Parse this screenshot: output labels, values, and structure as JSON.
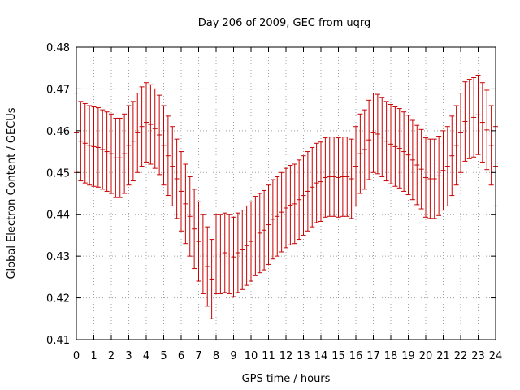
{
  "chart_data": {
    "type": "errorbar",
    "title": "Day 206 of 2009, GEC from uqrg",
    "xlabel": "GPS time / hours",
    "ylabel": "Global Electron Content / GECUs",
    "xlim": [
      0,
      24
    ],
    "ylim": [
      0.41,
      0.48
    ],
    "xticks": [
      "0",
      "1",
      "2",
      "3",
      "4",
      "5",
      "6",
      "7",
      "8",
      "9",
      "10",
      "11",
      "12",
      "13",
      "14",
      "15",
      "16",
      "17",
      "18",
      "19",
      "20",
      "21",
      "22",
      "23",
      "24"
    ],
    "yticks": [
      "0.41",
      "0.42",
      "0.43",
      "0.44",
      "0.45",
      "0.46",
      "0.47",
      "0.48"
    ],
    "grid": true,
    "color": "#c80000",
    "x": [
      0,
      0.25,
      0.5,
      0.75,
      1,
      1.25,
      1.5,
      1.75,
      2,
      2.25,
      2.5,
      2.75,
      3,
      3.25,
      3.5,
      3.75,
      4,
      4.25,
      4.5,
      4.75,
      5,
      5.25,
      5.5,
      5.75,
      6,
      6.25,
      6.5,
      6.75,
      7,
      7.25,
      7.5,
      7.75,
      8,
      8.25,
      8.5,
      8.75,
      9,
      9.25,
      9.5,
      9.75,
      10,
      10.25,
      10.5,
      10.75,
      11,
      11.25,
      11.5,
      11.75,
      12,
      12.25,
      12.5,
      12.75,
      13,
      13.25,
      13.5,
      13.75,
      14,
      14.25,
      14.5,
      14.75,
      15,
      15.25,
      15.5,
      15.75,
      16,
      16.25,
      16.5,
      16.75,
      17,
      17.25,
      17.5,
      17.75,
      18,
      18.25,
      18.5,
      18.75,
      19,
      19.25,
      19.5,
      19.75,
      20,
      20.25,
      20.5,
      20.75,
      21,
      21.25,
      21.5,
      21.75,
      22,
      22.25,
      22.5,
      22.75,
      23,
      23.25,
      23.5,
      23.75,
      24
    ],
    "y": [
      0.4595,
      0.4575,
      0.457,
      0.4565,
      0.4562,
      0.456,
      0.4555,
      0.455,
      0.4545,
      0.4535,
      0.4535,
      0.4545,
      0.4565,
      0.4575,
      0.4595,
      0.461,
      0.462,
      0.4615,
      0.4605,
      0.459,
      0.4565,
      0.454,
      0.4515,
      0.4485,
      0.4455,
      0.4425,
      0.4395,
      0.4365,
      0.4335,
      0.4305,
      0.4275,
      0.4245,
      0.4305,
      0.4305,
      0.4308,
      0.4305,
      0.4298,
      0.4308,
      0.4315,
      0.4325,
      0.4335,
      0.4348,
      0.4355,
      0.4362,
      0.4375,
      0.4388,
      0.4395,
      0.4405,
      0.4415,
      0.4422,
      0.4425,
      0.4435,
      0.4445,
      0.4455,
      0.4465,
      0.4475,
      0.4478,
      0.4488,
      0.449,
      0.449,
      0.4488,
      0.449,
      0.449,
      0.4485,
      0.4515,
      0.4545,
      0.4555,
      0.4578,
      0.4595,
      0.4592,
      0.4585,
      0.4575,
      0.4568,
      0.4562,
      0.4558,
      0.455,
      0.4542,
      0.453,
      0.4518,
      0.4508,
      0.4488,
      0.4485,
      0.4485,
      0.4492,
      0.4505,
      0.4515,
      0.454,
      0.4565,
      0.4595,
      0.4622,
      0.4628,
      0.4632,
      0.4638,
      0.462,
      0.4602,
      0.4565,
      0.4515
    ],
    "err": [
      0.0095,
      0.0095,
      0.0095,
      0.0095,
      0.0095,
      0.0095,
      0.0095,
      0.0095,
      0.0095,
      0.0095,
      0.0095,
      0.0095,
      0.0095,
      0.0095,
      0.0095,
      0.0095,
      0.0095,
      0.0095,
      0.0095,
      0.0095,
      0.0095,
      0.0095,
      0.0095,
      0.0095,
      0.0095,
      0.0095,
      0.0095,
      0.0095,
      0.0095,
      0.0095,
      0.0095,
      0.0095,
      0.0095,
      0.0095,
      0.0095,
      0.0095,
      0.0095,
      0.0095,
      0.0095,
      0.0095,
      0.0095,
      0.0095,
      0.0095,
      0.0095,
      0.0095,
      0.0095,
      0.0095,
      0.0095,
      0.0095,
      0.0095,
      0.0095,
      0.0095,
      0.0095,
      0.0095,
      0.0095,
      0.0095,
      0.0095,
      0.0095,
      0.0095,
      0.0095,
      0.0095,
      0.0095,
      0.0095,
      0.0095,
      0.0095,
      0.0095,
      0.0095,
      0.0095,
      0.0095,
      0.0095,
      0.0095,
      0.0095,
      0.0095,
      0.0095,
      0.0095,
      0.0095,
      0.0095,
      0.0095,
      0.0095,
      0.0095,
      0.0095,
      0.0095,
      0.0095,
      0.0095,
      0.0095,
      0.0095,
      0.0095,
      0.0095,
      0.0095,
      0.0095,
      0.0095,
      0.0095,
      0.0095,
      0.0095,
      0.0095,
      0.0095,
      0.0095
    ]
  }
}
